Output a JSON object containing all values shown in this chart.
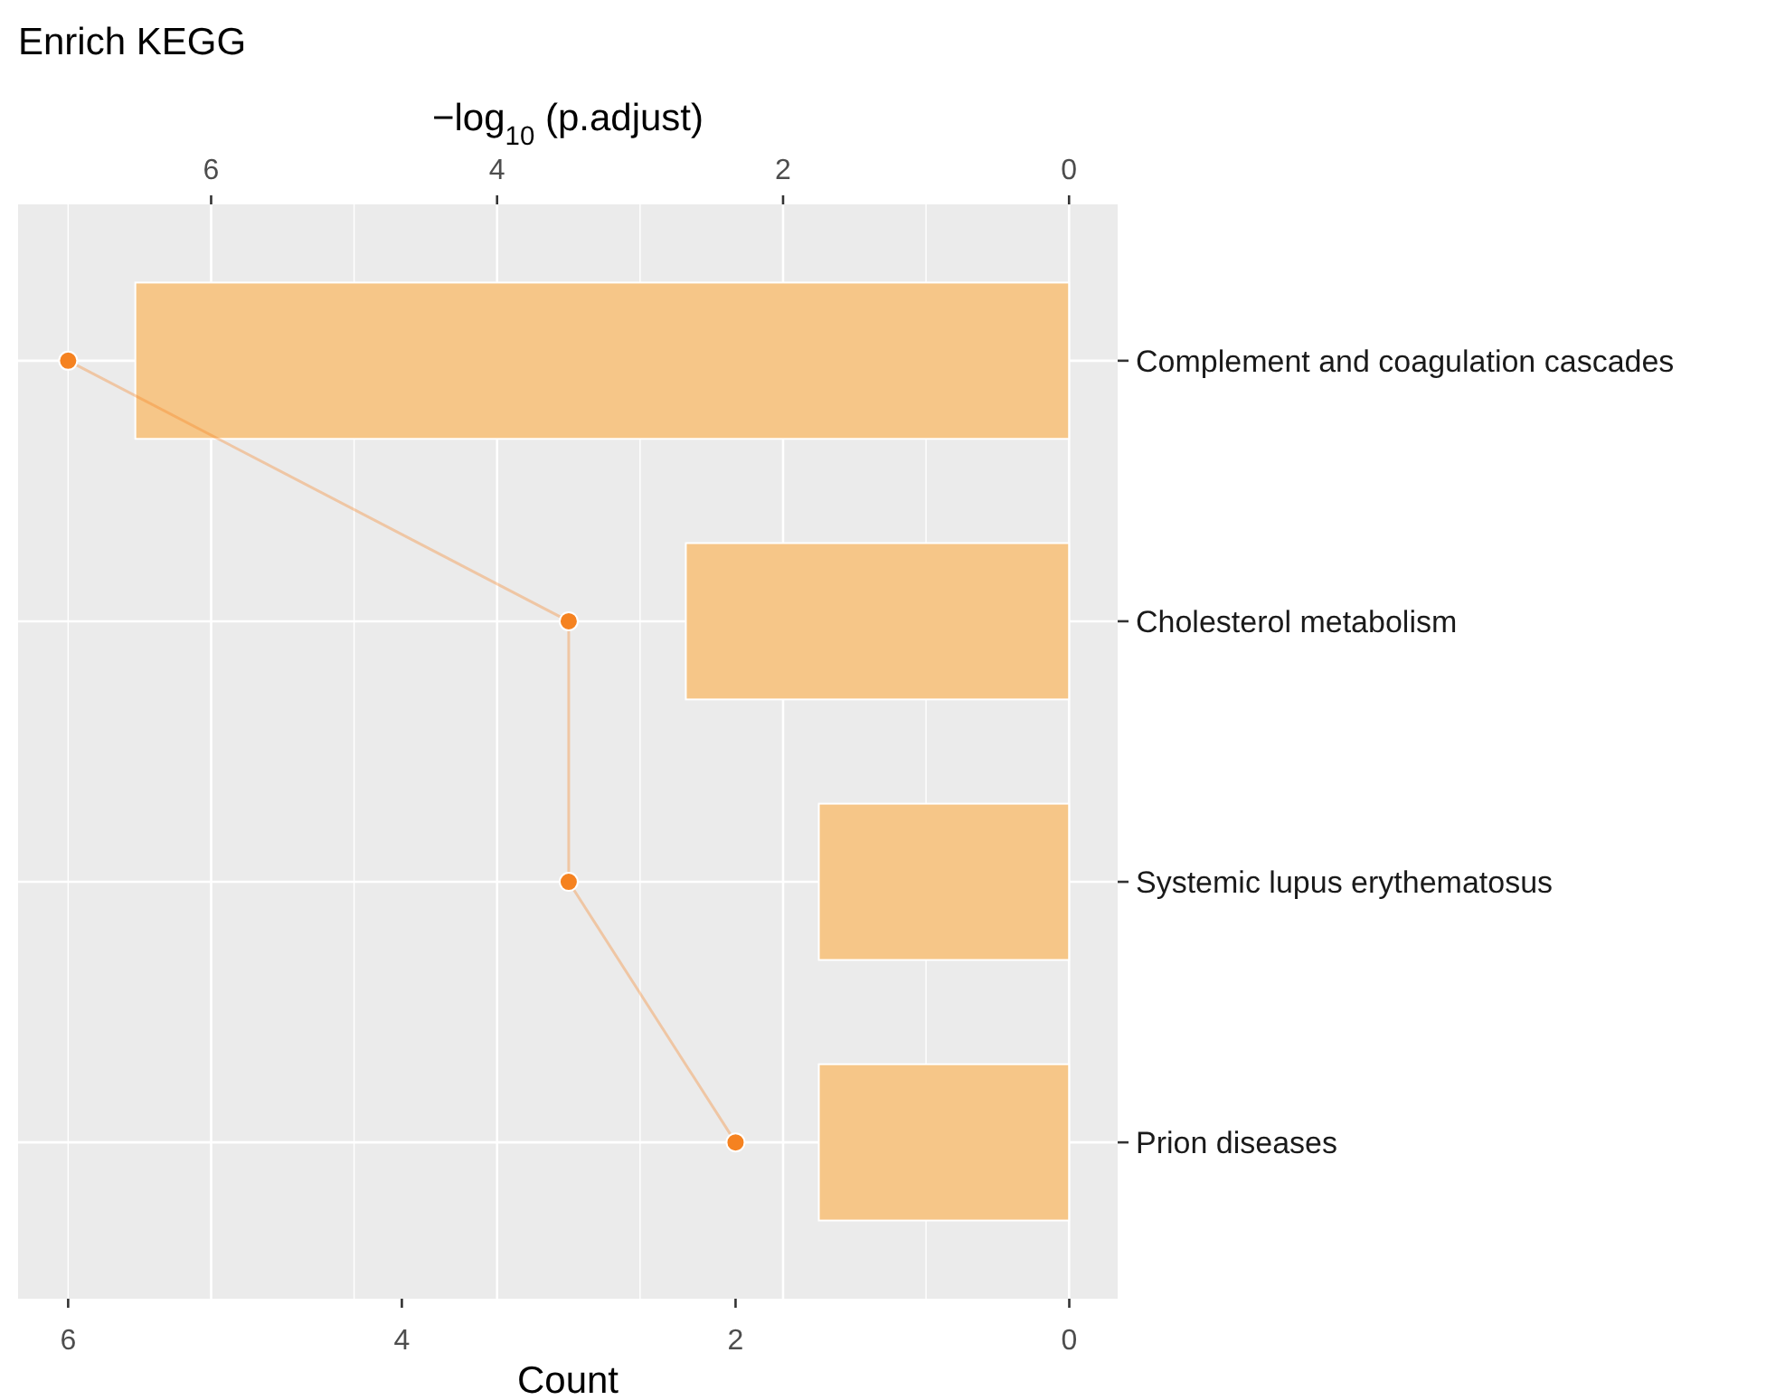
{
  "chart_data": {
    "type": "bar",
    "orientation": "horizontal",
    "title": "Enrich KEGG",
    "xlabel": "Count",
    "x2label": "−log$_{10}$ (p.adjust)",
    "categories": [
      "Complement and coagulation cascades",
      "Cholesterol metabolism",
      "Systemic lupus erythematosus",
      "Prion diseases"
    ],
    "series": [
      {
        "axis": "x2",
        "color": "#f6c688",
        "values": [
          6.53,
          2.68,
          1.75,
          1.75
        ]
      },
      {
        "type": "line",
        "color": "#f58220",
        "marker": "circle",
        "values": [
          6,
          3,
          3,
          2
        ]
      }
    ],
    "xlim": [
      6.3,
      -0.29
    ],
    "xticks": [
      6,
      4,
      2,
      0
    ],
    "x2lim": [
      7.35,
      -0.34
    ],
    "x2ticks": [
      6,
      4,
      2,
      0
    ],
    "grid": "x2"
  }
}
